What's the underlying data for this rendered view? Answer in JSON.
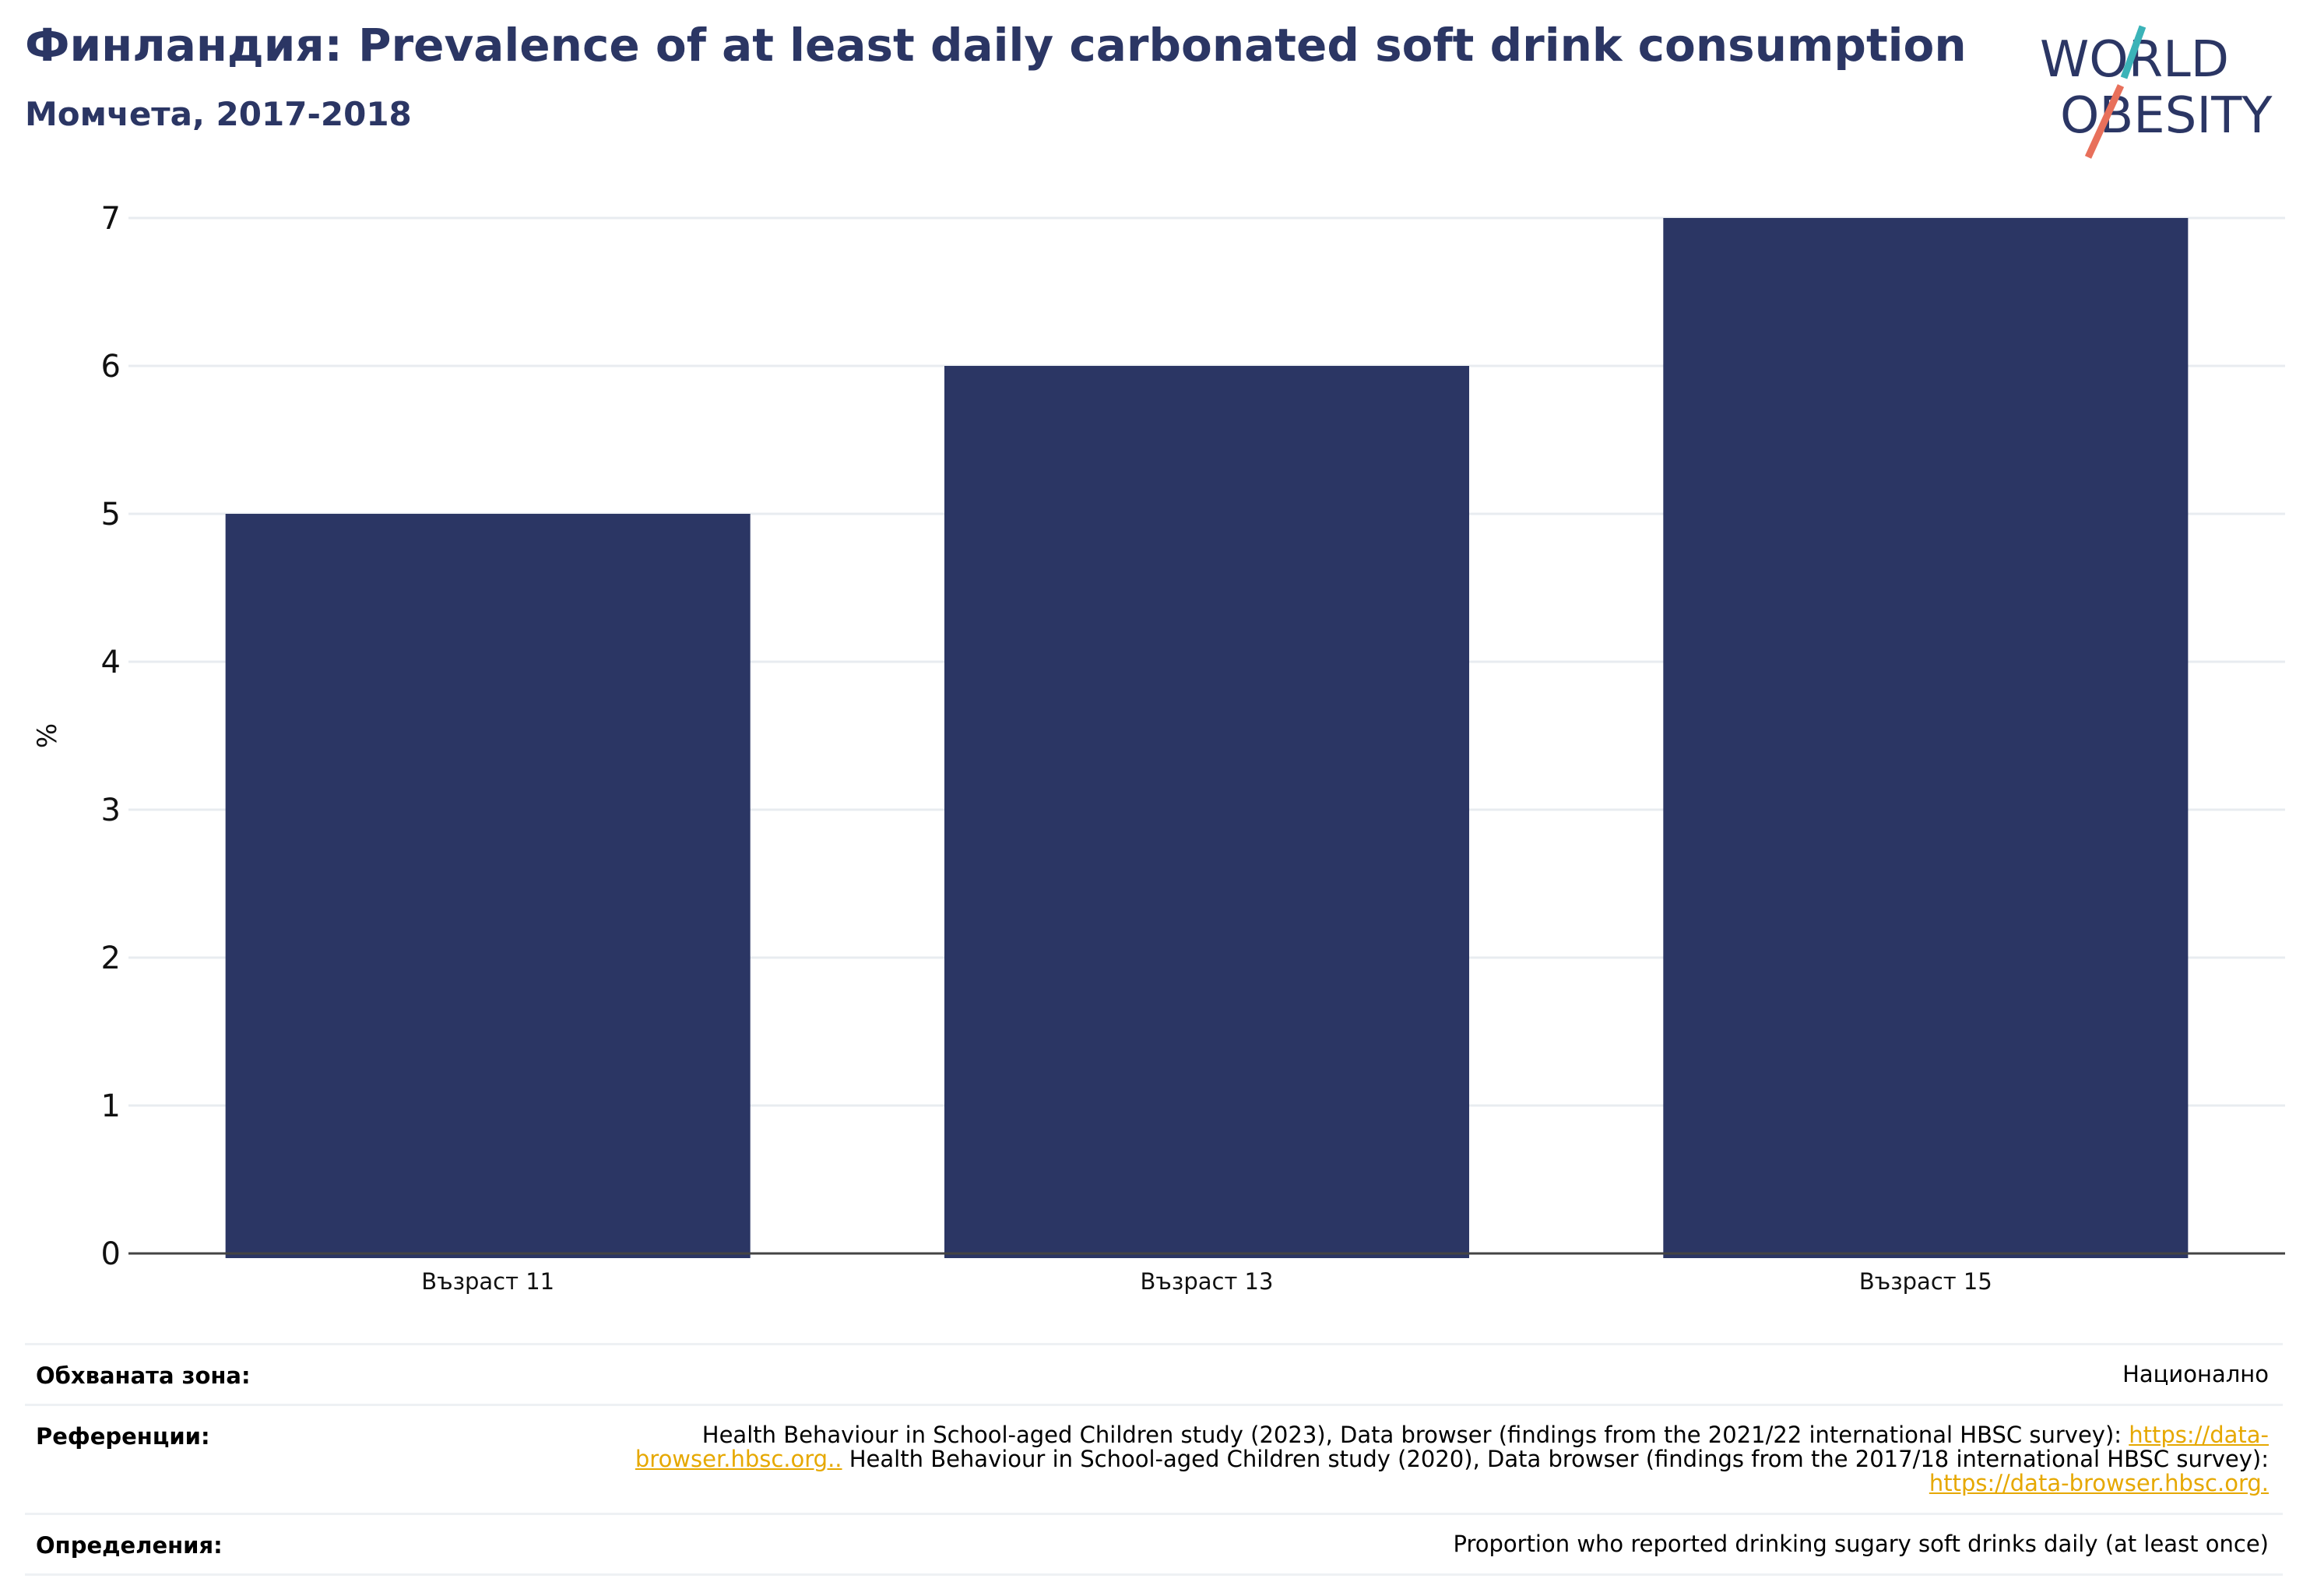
{
  "header": {
    "title": "Финландия: Prevalence of at least daily carbonated soft drink consumption",
    "subtitle": "Момчета, 2017-2018"
  },
  "logo": {
    "line1": "WORLD",
    "line2": "OBESITY",
    "colors": {
      "text": "#2b3664",
      "slash_top": "#3bb3b8",
      "slash_bottom": "#e8705b"
    }
  },
  "chart_data": {
    "type": "bar",
    "categories": [
      "Възраст 11",
      "Възраст 13",
      "Възраст 15"
    ],
    "values": [
      5,
      6,
      7
    ],
    "ylabel": "%",
    "ylim": [
      0,
      7
    ],
    "yticks": [
      0,
      1,
      2,
      3,
      4,
      5,
      6,
      7
    ],
    "grid": true,
    "bar_color": "#2b3664",
    "legend": "none"
  },
  "footer": {
    "coverage_label": "Обхваната зона:",
    "coverage_value": "Национално",
    "references_label": "Референции:",
    "references": [
      {
        "text": "Health Behaviour in School-aged Children study (2023), Data browser (findings from the 2021/22 international HBSC survey): "
      },
      {
        "link": "https://data-browser.hbsc.org.."
      },
      {
        "text": " Health Behaviour in School-aged Children study (2020), Data browser (findings from the 2017/18 international HBSC survey): "
      },
      {
        "link": "https://data-browser.hbsc.org."
      }
    ],
    "definitions_label": "Определения:",
    "definitions_value": "Proportion who reported drinking sugary soft drinks daily (at least once)"
  }
}
